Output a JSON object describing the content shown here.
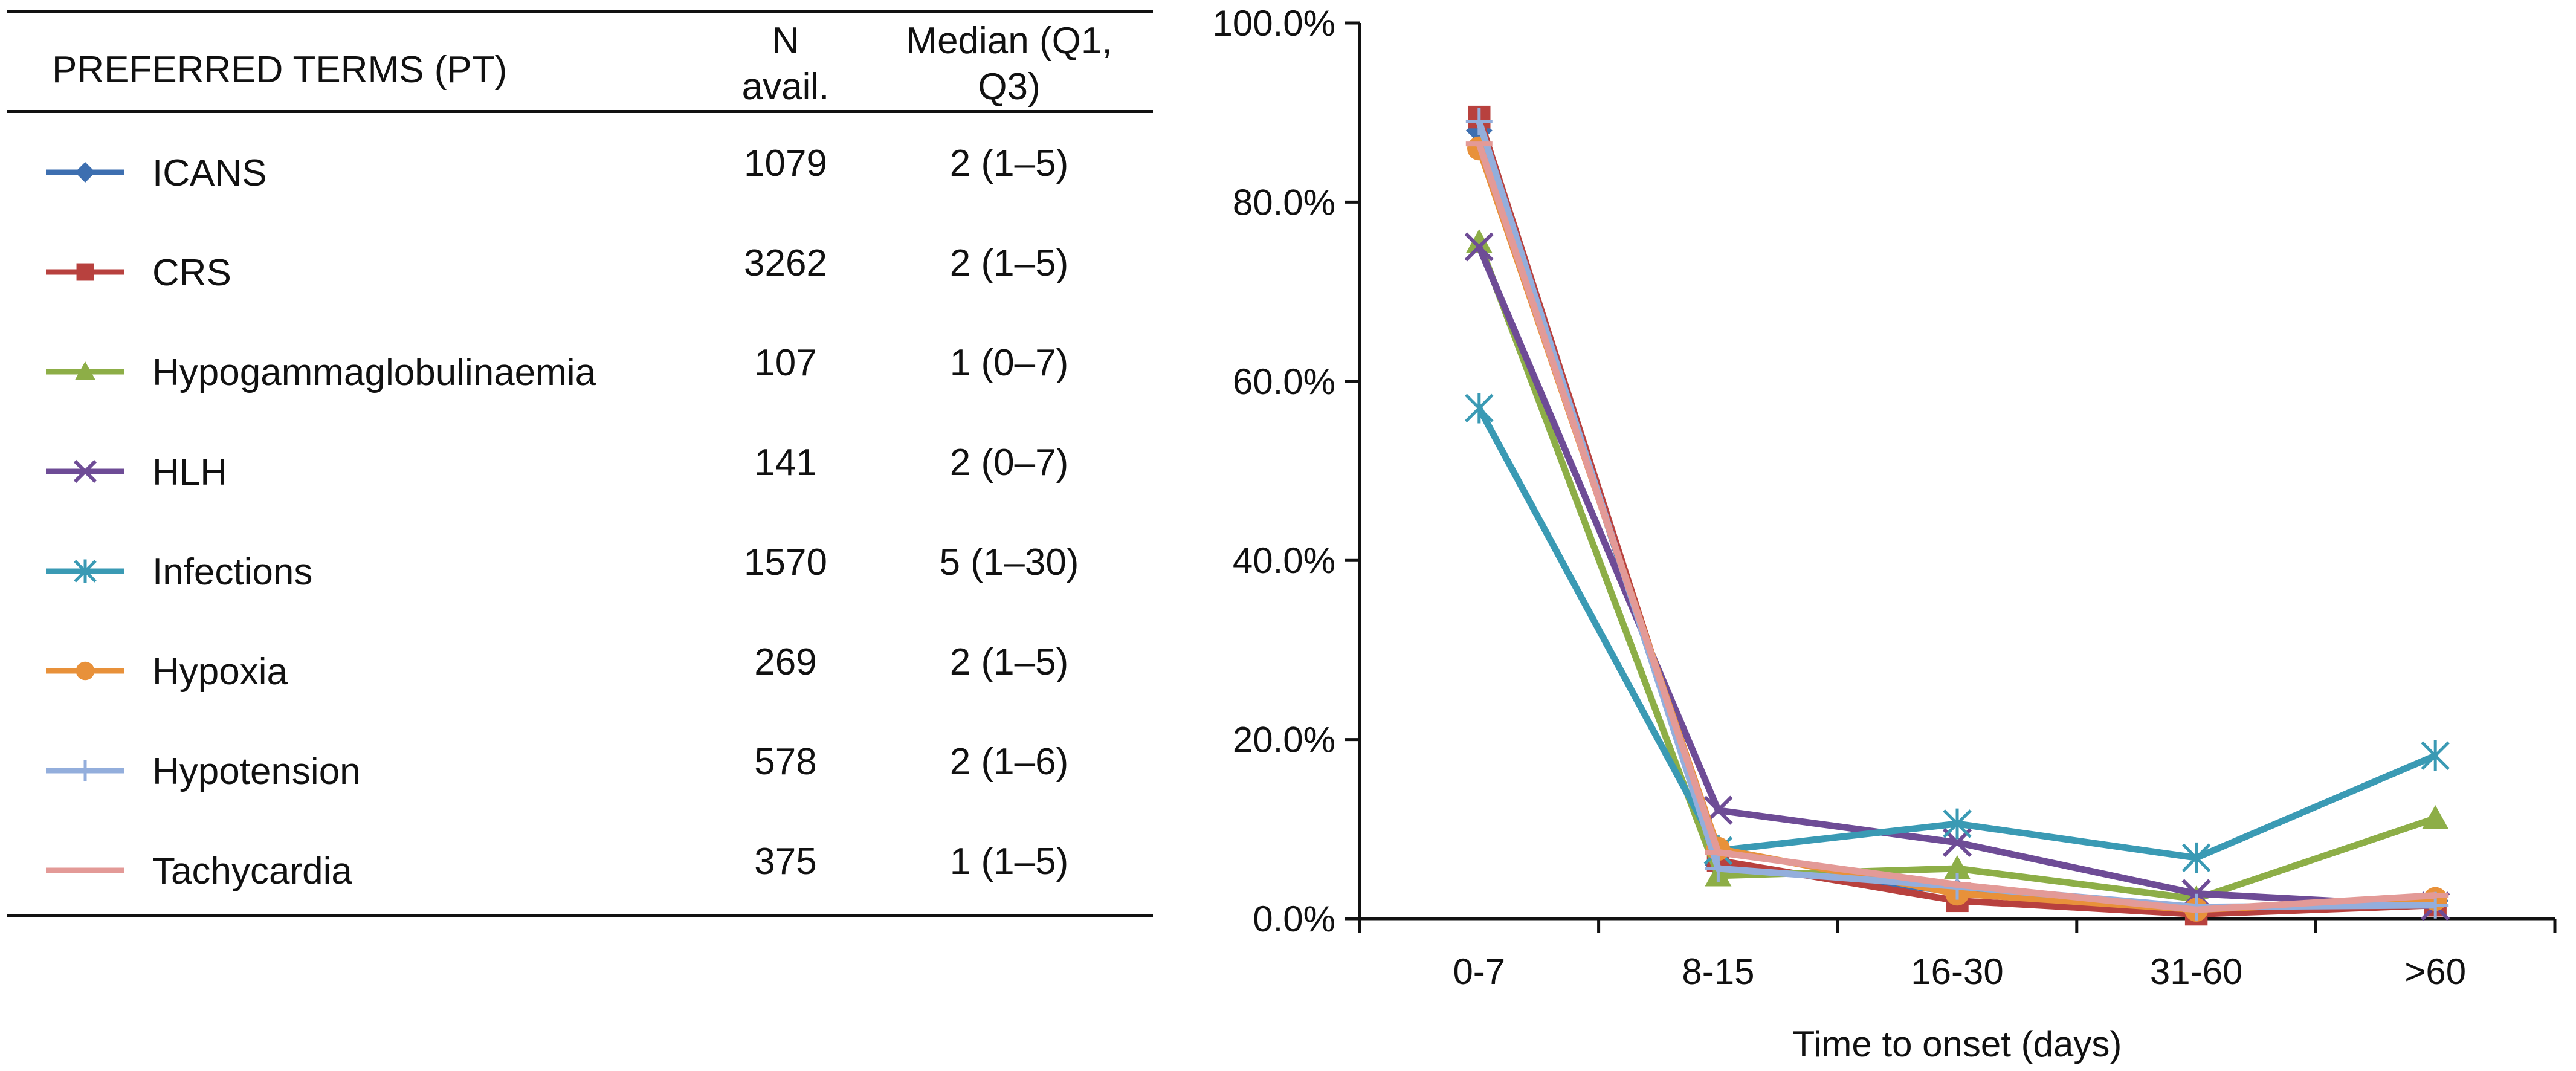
{
  "legend_table": {
    "header": {
      "term": "PREFERRED TERMS  (PT)",
      "n_line1": "N",
      "n_line2": "avail.",
      "median_line1": "Median (Q1,",
      "median_line2": "Q3)"
    },
    "rows": [
      {
        "term": "ICANS",
        "n": "1079",
        "median": "2 (1–5)",
        "color": "#3D6FB0",
        "marker": "diamond"
      },
      {
        "term": "CRS",
        "n": "3262",
        "median": "2 (1–5)",
        "color": "#B8413E",
        "marker": "square"
      },
      {
        "term": "Hypogammaglobulinaemia",
        "n": "107",
        "median": "1 (0–7)",
        "color": "#8DAE47",
        "marker": "triangle"
      },
      {
        "term": "HLH",
        "n": "141",
        "median": "2 (0–7)",
        "color": "#6E4C96",
        "marker": "x"
      },
      {
        "term": "Infections",
        "n": "1570",
        "median": "5 (1–30)",
        "color": "#3A9AB4",
        "marker": "star"
      },
      {
        "term": "Hypoxia",
        "n": "269",
        "median": "2 (1–5)",
        "color": "#E8913A",
        "marker": "circle"
      },
      {
        "term": "Hypotension",
        "n": "578",
        "median": "2 (1–6)",
        "color": "#93AEDC",
        "marker": "plus"
      },
      {
        "term": "Tachycardia",
        "n": "375",
        "median": "1 (1–5)",
        "color": "#E39A97",
        "marker": "dash"
      }
    ]
  },
  "chart_data": {
    "type": "line",
    "title": "",
    "xlabel": "Time to onset (days)",
    "ylabel": "",
    "categories": [
      "0-7",
      "8-15",
      "16-30",
      "31-60",
      ">60"
    ],
    "ylim": [
      0,
      100
    ],
    "yticks": [
      "0.0%",
      "20.0%",
      "40.0%",
      "60.0%",
      "80.0%",
      "100.0%"
    ],
    "series": [
      {
        "name": "ICANS",
        "color": "#3D6FB0",
        "marker": "diamond",
        "values": [
          88.0,
          6.0,
          3.0,
          1.0,
          2.0
        ]
      },
      {
        "name": "CRS",
        "color": "#B8413E",
        "marker": "square",
        "values": [
          89.5,
          6.5,
          2.0,
          0.5,
          1.5
        ]
      },
      {
        "name": "Hypogammaglobulinaemia",
        "color": "#8DAE47",
        "marker": "triangle",
        "values": [
          75.5,
          4.8,
          5.6,
          2.2,
          11.2
        ]
      },
      {
        "name": "HLH",
        "color": "#6E4C96",
        "marker": "x",
        "values": [
          75.0,
          12.1,
          8.5,
          2.8,
          1.4
        ]
      },
      {
        "name": "Infections",
        "color": "#3A9AB4",
        "marker": "star",
        "values": [
          57.0,
          7.6,
          10.6,
          6.8,
          18.2
        ]
      },
      {
        "name": "Hypoxia",
        "color": "#E8913A",
        "marker": "circle",
        "values": [
          86.0,
          7.8,
          2.8,
          1.0,
          2.2
        ]
      },
      {
        "name": "Hypotension",
        "color": "#93AEDC",
        "marker": "plus",
        "values": [
          89.0,
          5.6,
          3.6,
          1.3,
          1.5
        ]
      },
      {
        "name": "Tachycardia",
        "color": "#E39A97",
        "marker": "dash",
        "values": [
          86.5,
          7.4,
          3.8,
          1.0,
          2.6
        ]
      }
    ]
  }
}
